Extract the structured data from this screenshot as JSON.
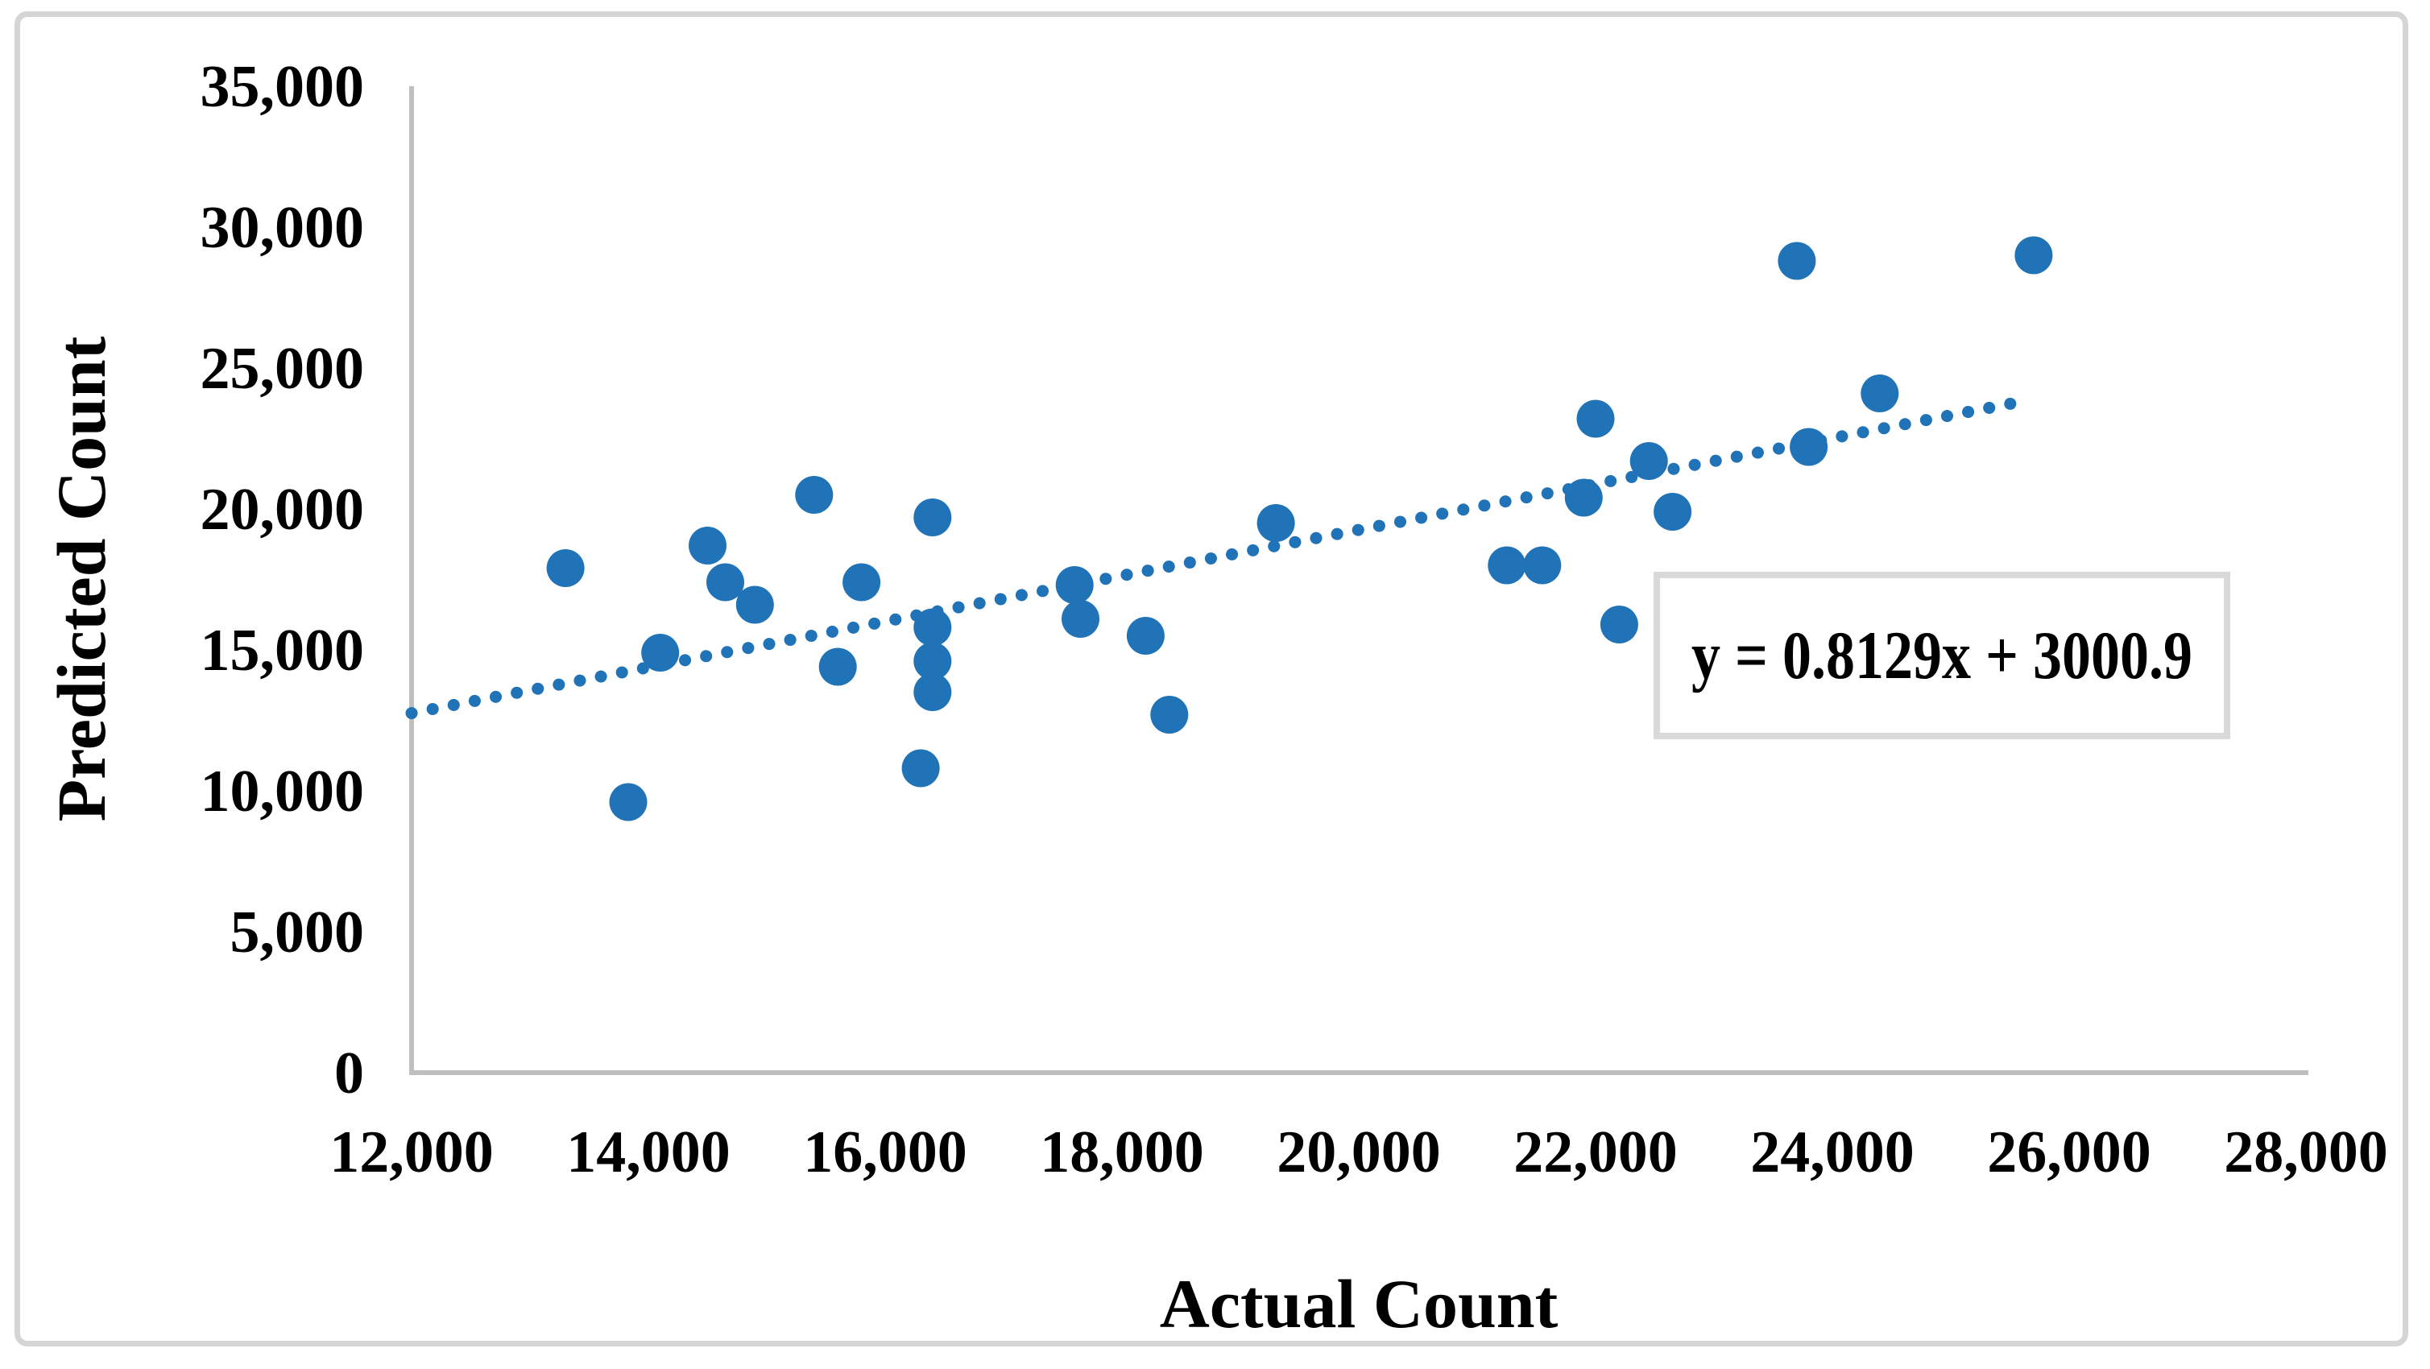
{
  "chart_data": {
    "type": "scatter",
    "title": "",
    "xlabel": "Actual Count",
    "ylabel": "Predicted Count",
    "xlim": [
      12000,
      28000
    ],
    "ylim": [
      0,
      35000
    ],
    "grid": false,
    "legend_position": "none",
    "x_ticks": [
      12000,
      14000,
      16000,
      18000,
      20000,
      22000,
      24000,
      26000,
      28000
    ],
    "x_tick_labels": [
      "12,000",
      "14,000",
      "16,000",
      "18,000",
      "20,000",
      "22,000",
      "24,000",
      "26,000",
      "28,000"
    ],
    "y_ticks": [
      0,
      5000,
      10000,
      15000,
      20000,
      25000,
      30000,
      35000
    ],
    "y_tick_labels": [
      "0",
      "5,000",
      "10,000",
      "15,000",
      "20,000",
      "25,000",
      "30,000",
      "35,000"
    ],
    "points": [
      [
        13300,
        17900
      ],
      [
        13830,
        9600
      ],
      [
        14100,
        14900
      ],
      [
        14500,
        18700
      ],
      [
        14650,
        17400
      ],
      [
        14900,
        16600
      ],
      [
        15400,
        20500
      ],
      [
        15600,
        14400
      ],
      [
        15800,
        17400
      ],
      [
        16400,
        19700
      ],
      [
        16400,
        15800
      ],
      [
        16400,
        14600
      ],
      [
        16400,
        13500
      ],
      [
        16300,
        10800
      ],
      [
        17600,
        17300
      ],
      [
        17650,
        16100
      ],
      [
        18200,
        15500
      ],
      [
        18400,
        12700
      ],
      [
        19300,
        19500
      ],
      [
        21250,
        18000
      ],
      [
        21550,
        18000
      ],
      [
        22000,
        23200
      ],
      [
        21900,
        20400
      ],
      [
        22200,
        15900
      ],
      [
        22450,
        21700
      ],
      [
        22650,
        19900
      ],
      [
        23800,
        22200
      ],
      [
        24400,
        24100
      ],
      [
        23700,
        28800
      ],
      [
        25700,
        29000
      ]
    ],
    "trendline": {
      "label": "y = 0.8129x + 3000.9",
      "slope": 0.8129,
      "intercept": 3000.9,
      "x_start": 12000,
      "x_end": 25600,
      "style": "dotted"
    },
    "colors": {
      "point": "#2173b8",
      "trend": "#2173b8",
      "axis": "#bfbfbf",
      "text": "#000000",
      "frame": "#d5d5d5",
      "equation_border": "#d9d9d9"
    }
  }
}
